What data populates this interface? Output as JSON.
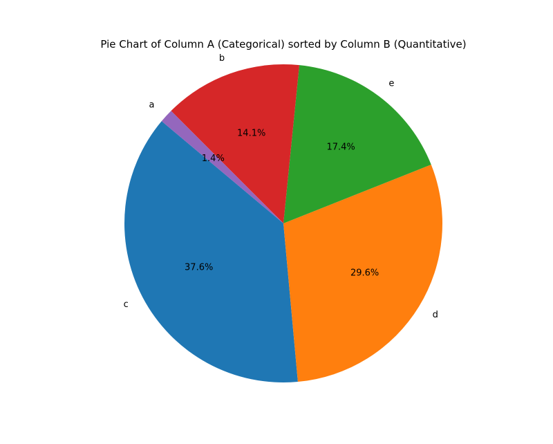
{
  "chart_data": {
    "type": "pie",
    "title": "Pie Chart of Column A (Categorical) sorted by Column B (Quantitative)",
    "slices": [
      {
        "label": "c",
        "value": 37.6,
        "pct_label": "37.6%",
        "color": "#1f77b4"
      },
      {
        "label": "d",
        "value": 29.6,
        "pct_label": "29.6%",
        "color": "#ff7f0e"
      },
      {
        "label": "e",
        "value": 17.4,
        "pct_label": "17.4%",
        "color": "#2ca02c"
      },
      {
        "label": "b",
        "value": 14.1,
        "pct_label": "14.1%",
        "color": "#d62728"
      },
      {
        "label": "a",
        "value": 1.4,
        "pct_label": "1.4%",
        "color": "#9467bd"
      }
    ]
  }
}
